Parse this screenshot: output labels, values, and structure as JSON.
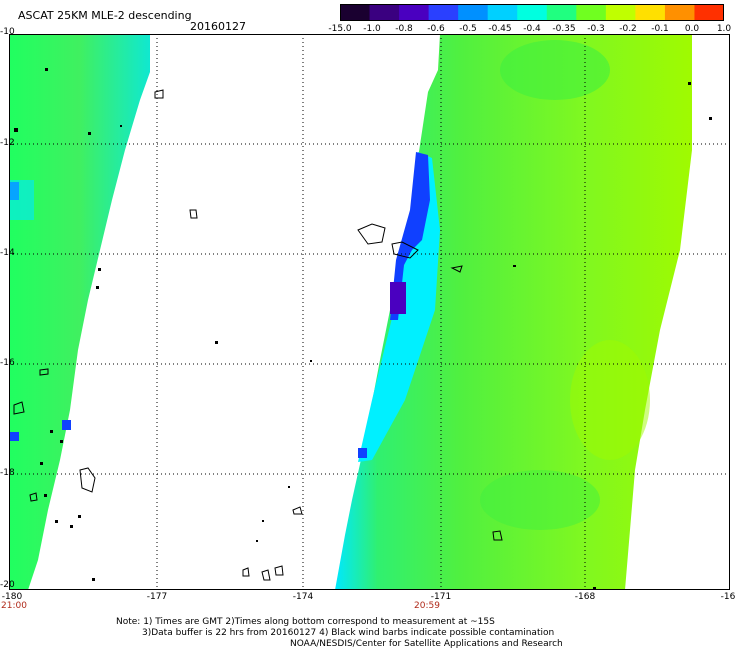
{
  "header": {
    "title": "ASCAT 25KM MLE-2 descending",
    "date": "20160127"
  },
  "colorbar": {
    "labels": [
      "-15.0",
      "-1.0",
      "-0.8",
      "-0.6",
      "-0.5",
      "-0.45",
      "-0.4",
      "-0.35",
      "-0.3",
      "-0.2",
      "-0.1",
      "0.0",
      "1.0"
    ],
    "colors": [
      "#1a0030",
      "#3a0080",
      "#4a00c0",
      "#2a40ff",
      "#0090ff",
      "#00d0ff",
      "#00ffe0",
      "#20ff80",
      "#70ff20",
      "#c0ff00",
      "#ffe000",
      "#ff9000",
      "#ff3000"
    ]
  },
  "axes": {
    "lat_labels": [
      "-10",
      "-12",
      "-14",
      "-16",
      "-18",
      "-20"
    ],
    "lon_labels": [
      "-180",
      "-177",
      "-174",
      "-171",
      "-168",
      "-16"
    ]
  },
  "times": {
    "left": "21:00",
    "right": "20:59"
  },
  "notes": {
    "line1": "Note: 1) Times are GMT 2)Times along bottom correspond to measurement at ~15S",
    "line2": "3)Data buffer is 22 hrs from 20160127 4) Black wind barbs indicate possible contamination",
    "line3": "NOAA/NESDIS/Center for Satellite Applications and Research"
  },
  "palette": {
    "swath_green": "#50f040",
    "swath_lime": "#90f810",
    "cyan": "#00f0ff",
    "blue": "#0040ff",
    "purple": "#4a00c0"
  }
}
